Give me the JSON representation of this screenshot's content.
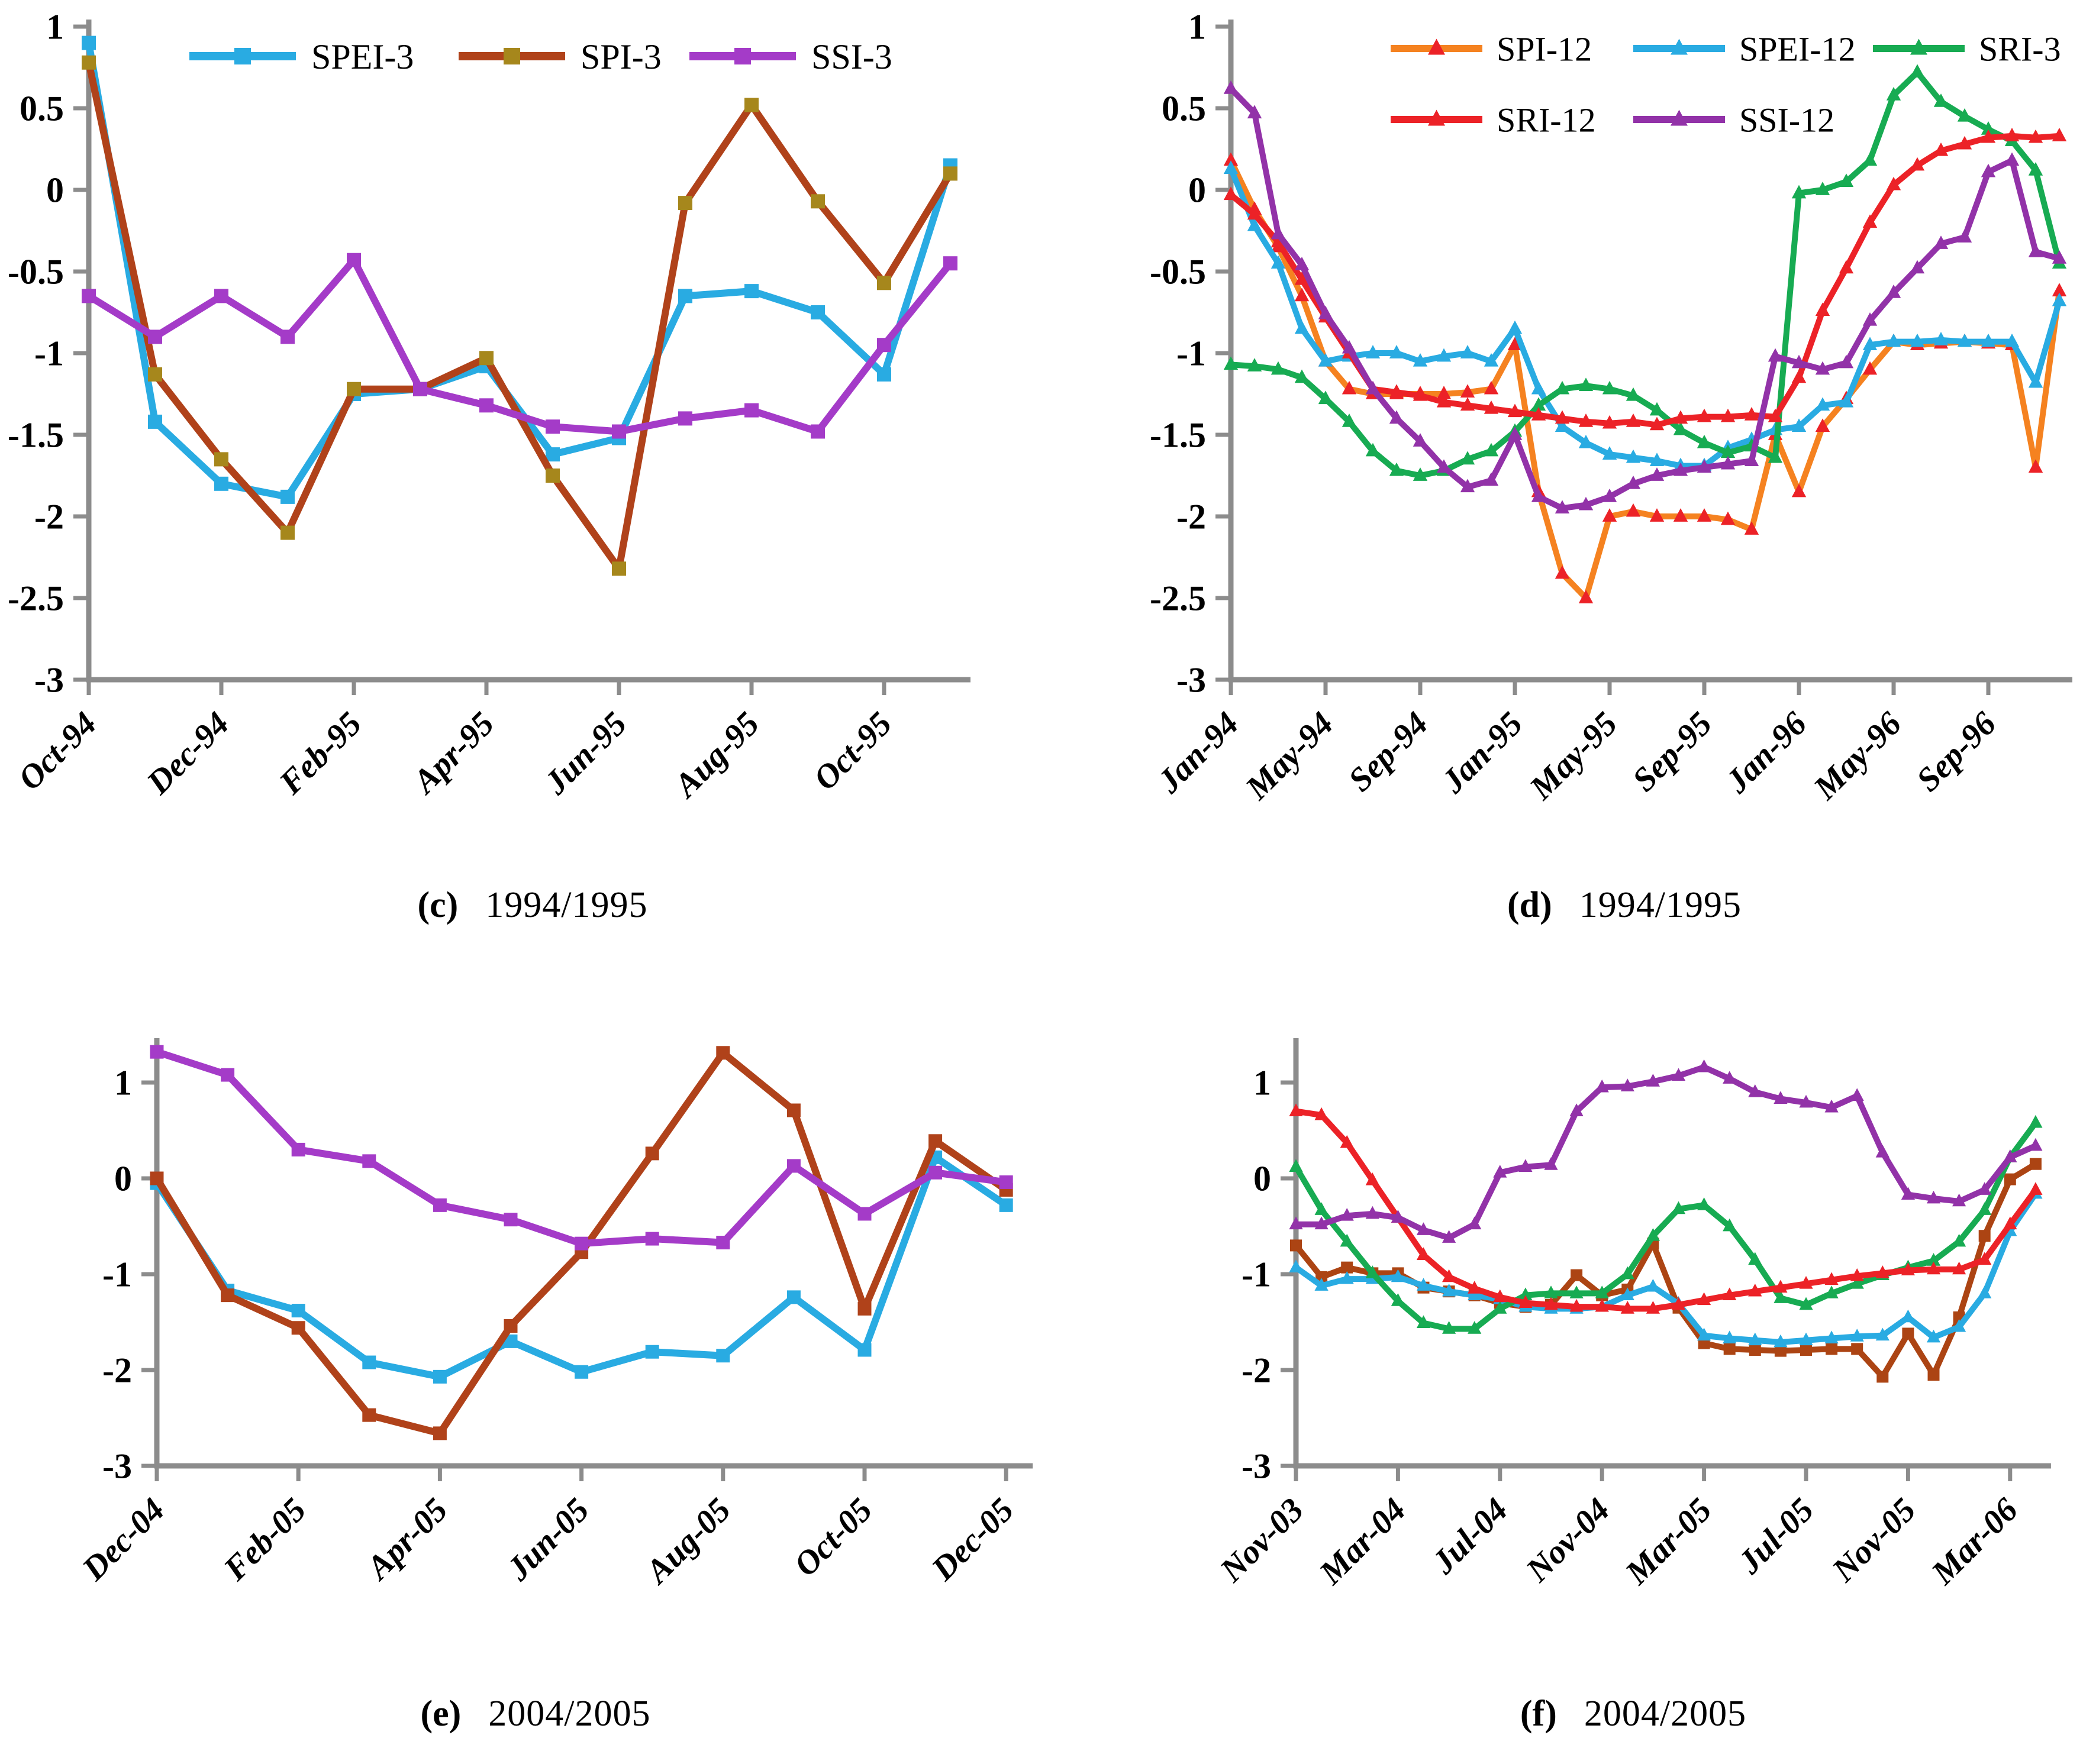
{
  "axis_color": "#8C8C8C",
  "chart_data": [
    {
      "id": "c",
      "type": "line",
      "caption_tag": "(c)",
      "caption_text": "1994/1995",
      "ylim": [
        -3,
        1
      ],
      "yticks": [
        1,
        0.5,
        0,
        -0.5,
        -1,
        -1.5,
        -2,
        -2.5,
        -3
      ],
      "ytick_labels": [
        "1",
        "0.5",
        "0",
        "-0.5",
        "-1",
        "-1.5",
        "-2",
        "-2.5",
        "-3"
      ],
      "x": [
        "Oct-94",
        "Nov-94",
        "Dec-94",
        "Jan-95",
        "Feb-95",
        "Mar-95",
        "Apr-95",
        "May-95",
        "Jun-95",
        "Jul-95",
        "Aug-95",
        "Sep-95",
        "Oct-95",
        "Nov-95"
      ],
      "xtick_labels": [
        "Oct-94",
        "Dec-94",
        "Feb-95",
        "Apr-95",
        "Jun-95",
        "Aug-95",
        "Oct-95"
      ],
      "xtick_every": 2,
      "legend_rows": [
        [
          "SPEI-3",
          "SPI-3",
          "SSI-3"
        ]
      ],
      "legend_position": "top-center",
      "grid": false,
      "series": [
        {
          "name": "SPEI-3",
          "color": "#29ABE2",
          "marker": "square",
          "values": [
            0.9,
            -1.42,
            -1.8,
            -1.88,
            -1.25,
            -1.22,
            -1.08,
            -1.62,
            -1.52,
            -0.65,
            -0.62,
            -0.75,
            -1.13,
            0.15
          ]
        },
        {
          "name": "SPI-3",
          "color": "#B0421A",
          "marker": "square",
          "marker_color": "#A6871C",
          "values": [
            0.78,
            -1.13,
            -1.65,
            -2.1,
            -1.22,
            -1.22,
            -1.03,
            -1.75,
            -2.32,
            -0.08,
            0.52,
            -0.07,
            -0.57,
            0.1
          ]
        },
        {
          "name": "SSI-3",
          "color": "#A43BC8",
          "marker": "square",
          "values": [
            -0.65,
            -0.9,
            -0.65,
            -0.9,
            -0.43,
            -1.22,
            -1.32,
            -1.45,
            -1.48,
            -1.4,
            -1.35,
            -1.48,
            -0.95,
            -0.45
          ]
        }
      ]
    },
    {
      "id": "d",
      "type": "line",
      "caption_tag": "(d)",
      "caption_text": "1994/1995",
      "ylim": [
        -3,
        1
      ],
      "yticks": [
        1,
        0.5,
        0,
        -0.5,
        -1,
        -1.5,
        -2,
        -2.5,
        -3
      ],
      "ytick_labels": [
        "1",
        "0.5",
        "0",
        "-0.5",
        "-1",
        "-1.5",
        "-2",
        "-2.5",
        "-3"
      ],
      "x": [
        "Jan-94",
        "Feb-94",
        "Mar-94",
        "Apr-94",
        "May-94",
        "Jun-94",
        "Jul-94",
        "Aug-94",
        "Sep-94",
        "Oct-94",
        "Nov-94",
        "Dec-94",
        "Jan-95",
        "Feb-95",
        "Mar-95",
        "Apr-95",
        "May-95",
        "Jun-95",
        "Jul-95",
        "Aug-95",
        "Sep-95",
        "Oct-95",
        "Nov-95",
        "Dec-95",
        "Jan-96",
        "Feb-96",
        "Mar-96",
        "Apr-96",
        "May-96",
        "Jun-96",
        "Jul-96",
        "Aug-96",
        "Sep-96",
        "Oct-96",
        "Nov-96",
        "Dec-96"
      ],
      "xtick_labels": [
        "Jan-94",
        "May-94",
        "Sep-94",
        "Jan-95",
        "May-95",
        "Sep-95",
        "Jan-96",
        "May-96",
        "Sep-96"
      ],
      "xtick_every": 4,
      "legend_rows": [
        [
          "SPI-12",
          "SPEI-12",
          "SRI-3"
        ],
        [
          "SRI-12",
          "SSI-12"
        ]
      ],
      "legend_position": "top-center",
      "grid": false,
      "series": [
        {
          "name": "SPI-12",
          "color": "#F58220",
          "marker": "triangle",
          "marker_color": "#EC2227",
          "values": [
            0.18,
            -0.12,
            -0.35,
            -0.65,
            -1.05,
            -1.22,
            -1.25,
            -1.25,
            -1.25,
            -1.25,
            -1.24,
            -1.22,
            -0.95,
            -1.85,
            -2.35,
            -2.5,
            -2.0,
            -1.97,
            -2.0,
            -2.0,
            -2.0,
            -2.02,
            -2.08,
            -1.5,
            -1.85,
            -1.45,
            -1.28,
            -1.1,
            -0.93,
            -0.95,
            -0.94,
            -0.93,
            -0.94,
            -0.95,
            -1.7,
            -0.62
          ]
        },
        {
          "name": "SPEI-12",
          "color": "#29ABE2",
          "marker": "triangle",
          "values": [
            0.13,
            -0.22,
            -0.45,
            -0.85,
            -1.05,
            -1.02,
            -1.0,
            -1.0,
            -1.05,
            -1.02,
            -1.0,
            -1.05,
            -0.85,
            -1.22,
            -1.45,
            -1.55,
            -1.62,
            -1.64,
            -1.66,
            -1.69,
            -1.69,
            -1.58,
            -1.53,
            -1.47,
            -1.45,
            -1.32,
            -1.3,
            -0.95,
            -0.93,
            -0.93,
            -0.92,
            -0.93,
            -0.93,
            -0.93,
            -1.18,
            -0.68
          ]
        },
        {
          "name": "SRI-3",
          "color": "#17AB52",
          "marker": "triangle",
          "values": [
            -1.07,
            -1.08,
            -1.1,
            -1.15,
            -1.28,
            -1.42,
            -1.6,
            -1.72,
            -1.75,
            -1.72,
            -1.65,
            -1.6,
            -1.48,
            -1.32,
            -1.22,
            -1.2,
            -1.22,
            -1.26,
            -1.35,
            -1.47,
            -1.55,
            -1.61,
            -1.57,
            -1.64,
            -0.02,
            0.0,
            0.05,
            0.18,
            0.58,
            0.72,
            0.54,
            0.45,
            0.37,
            0.3,
            0.12,
            -0.45
          ]
        },
        {
          "name": "SRI-12",
          "color": "#EC2227",
          "marker": "triangle",
          "values": [
            -0.03,
            -0.15,
            -0.32,
            -0.55,
            -0.78,
            -1.0,
            -1.22,
            -1.24,
            -1.26,
            -1.3,
            -1.32,
            -1.34,
            -1.36,
            -1.38,
            -1.4,
            -1.42,
            -1.43,
            -1.42,
            -1.44,
            -1.4,
            -1.39,
            -1.39,
            -1.38,
            -1.39,
            -1.15,
            -0.74,
            -0.48,
            -0.2,
            0.03,
            0.15,
            0.24,
            0.28,
            0.32,
            0.33,
            0.32,
            0.33
          ]
        },
        {
          "name": "SSI-12",
          "color": "#9232A8",
          "marker": "triangle",
          "values": [
            0.62,
            0.47,
            -0.27,
            -0.46,
            -0.76,
            -0.97,
            -1.22,
            -1.4,
            -1.54,
            -1.7,
            -1.82,
            -1.78,
            -1.5,
            -1.88,
            -1.95,
            -1.93,
            -1.88,
            -1.8,
            -1.75,
            -1.72,
            -1.7,
            -1.68,
            -1.66,
            -1.02,
            -1.06,
            -1.1,
            -1.06,
            -0.8,
            -0.63,
            -0.48,
            -0.33,
            -0.29,
            0.11,
            0.18,
            -0.38,
            -0.42
          ]
        }
      ]
    },
    {
      "id": "e",
      "type": "line",
      "caption_tag": "(e)",
      "caption_text": "2004/2005",
      "ylim": [
        -3,
        1
      ],
      "yticks": [
        1,
        0,
        -1,
        -2,
        -3
      ],
      "ytick_labels": [
        "1",
        "0",
        "-1",
        "-2",
        "-3"
      ],
      "x": [
        "Dec-04",
        "Jan-05",
        "Feb-05",
        "Mar-05",
        "Apr-05",
        "May-05",
        "Jun-05",
        "Jul-05",
        "Aug-05",
        "Sep-05",
        "Oct-05",
        "Nov-05",
        "Dec-05"
      ],
      "xtick_labels": [
        "Dec-04",
        "Feb-05",
        "Apr-05",
        "Jun-05",
        "Aug-05",
        "Oct-05",
        "Dec-05"
      ],
      "xtick_every": 2,
      "legend_rows": [],
      "legend_position": "none",
      "grid": false,
      "series": [
        {
          "name": "SPEI-3",
          "color": "#29ABE2",
          "marker": "square",
          "values": [
            -0.05,
            -1.17,
            -1.38,
            -1.92,
            -2.07,
            -1.7,
            -2.02,
            -1.81,
            -1.85,
            -1.24,
            -1.79,
            0.22,
            -0.28
          ]
        },
        {
          "name": "SPI-3",
          "color": "#B0421A",
          "marker": "square",
          "values": [
            0.0,
            -1.22,
            -1.56,
            -2.47,
            -2.66,
            -1.54,
            -0.77,
            0.26,
            1.31,
            0.71,
            -1.36,
            0.39,
            -0.12
          ]
        },
        {
          "name": "SSI-3",
          "color": "#A43BC8",
          "marker": "square",
          "values": [
            1.32,
            1.08,
            0.3,
            0.18,
            -0.28,
            -0.43,
            -0.68,
            -0.63,
            -0.67,
            0.13,
            -0.37,
            0.06,
            -0.04
          ]
        }
      ]
    },
    {
      "id": "f",
      "type": "line",
      "caption_tag": "(f)",
      "caption_text": "2004/2005",
      "ylim": [
        -3,
        1
      ],
      "yticks": [
        1,
        0,
        -1,
        -2,
        -3
      ],
      "ytick_labels": [
        "1",
        "0",
        "-1",
        "-2",
        "-3"
      ],
      "x": [
        "Nov-03",
        "Dec-03",
        "Jan-04",
        "Feb-04",
        "Mar-04",
        "Apr-04",
        "May-04",
        "Jun-04",
        "Jul-04",
        "Aug-04",
        "Sep-04",
        "Oct-04",
        "Nov-04",
        "Dec-04",
        "Jan-05",
        "Feb-05",
        "Mar-05",
        "Apr-05",
        "May-05",
        "Jun-05",
        "Jul-05",
        "Aug-05",
        "Sep-05",
        "Oct-05",
        "Nov-05",
        "Dec-05",
        "Jan-06",
        "Feb-06",
        "Mar-06",
        "Apr-06"
      ],
      "xtick_labels": [
        "Nov-03",
        "Mar-04",
        "Jul-04",
        "Nov-04",
        "Mar-05",
        "Jul-05",
        "Nov-05",
        "Mar-06"
      ],
      "xtick_every": 4,
      "legend_rows": [],
      "legend_position": "none",
      "grid": false,
      "series": [
        {
          "name": "SPI-12",
          "color": "#AC4413",
          "marker": "square",
          "values": [
            -0.7,
            -1.03,
            -0.93,
            -0.99,
            -0.99,
            -1.14,
            -1.18,
            -1.22,
            -1.3,
            -1.34,
            -1.32,
            -1.01,
            -1.22,
            -1.16,
            -0.68,
            -1.35,
            -1.72,
            -1.78,
            -1.79,
            -1.8,
            -1.79,
            -1.78,
            -1.78,
            -2.07,
            -1.62,
            -2.05,
            -1.45,
            -0.6,
            -0.01,
            0.15
          ]
        },
        {
          "name": "SPEI-12",
          "color": "#29ABE2",
          "marker": "triangle",
          "values": [
            -0.93,
            -1.12,
            -1.05,
            -1.05,
            -1.03,
            -1.12,
            -1.18,
            -1.22,
            -1.26,
            -1.34,
            -1.36,
            -1.36,
            -1.34,
            -1.22,
            -1.13,
            -1.31,
            -1.64,
            -1.67,
            -1.69,
            -1.71,
            -1.69,
            -1.67,
            -1.65,
            -1.64,
            -1.45,
            -1.66,
            -1.55,
            -1.2,
            -0.55,
            -0.16
          ]
        },
        {
          "name": "SRI-3",
          "color": "#17AB52",
          "marker": "triangle",
          "values": [
            0.12,
            -0.33,
            -0.66,
            -0.99,
            -1.28,
            -1.51,
            -1.57,
            -1.57,
            -1.36,
            -1.22,
            -1.2,
            -1.2,
            -1.2,
            -1.0,
            -0.6,
            -0.32,
            -0.28,
            -0.5,
            -0.85,
            -1.25,
            -1.32,
            -1.2,
            -1.1,
            -1.01,
            -0.93,
            -0.86,
            -0.66,
            -0.33,
            0.22,
            0.58
          ]
        },
        {
          "name": "SRI-12",
          "color": "#EC2227",
          "marker": "triangle",
          "values": [
            0.7,
            0.66,
            0.37,
            -0.02,
            -0.41,
            -0.8,
            -1.03,
            -1.15,
            -1.24,
            -1.3,
            -1.32,
            -1.34,
            -1.34,
            -1.36,
            -1.36,
            -1.32,
            -1.27,
            -1.22,
            -1.18,
            -1.14,
            -1.1,
            -1.06,
            -1.02,
            -0.99,
            -0.96,
            -0.95,
            -0.95,
            -0.85,
            -0.48,
            -0.12
          ]
        },
        {
          "name": "SSI-12",
          "color": "#9232A8",
          "marker": "triangle",
          "values": [
            -0.48,
            -0.48,
            -0.39,
            -0.37,
            -0.41,
            -0.54,
            -0.62,
            -0.48,
            0.06,
            0.12,
            0.14,
            0.7,
            0.95,
            0.96,
            1.01,
            1.07,
            1.16,
            1.04,
            0.9,
            0.83,
            0.79,
            0.74,
            0.86,
            0.27,
            -0.17,
            -0.21,
            -0.24,
            -0.12,
            0.22,
            0.34
          ]
        }
      ]
    }
  ]
}
